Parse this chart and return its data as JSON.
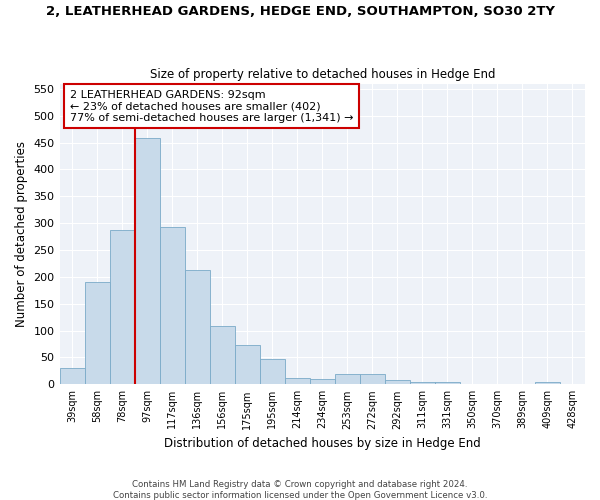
{
  "title": "2, LEATHERHEAD GARDENS, HEDGE END, SOUTHAMPTON, SO30 2TY",
  "subtitle": "Size of property relative to detached houses in Hedge End",
  "xlabel": "Distribution of detached houses by size in Hedge End",
  "ylabel": "Number of detached properties",
  "bar_color": "#c8daea",
  "bar_edge_color": "#7aaac8",
  "background_color": "#ffffff",
  "plot_bg_color": "#eef2f8",
  "grid_color": "#ffffff",
  "categories": [
    "39sqm",
    "58sqm",
    "78sqm",
    "97sqm",
    "117sqm",
    "136sqm",
    "156sqm",
    "175sqm",
    "195sqm",
    "214sqm",
    "234sqm",
    "253sqm",
    "272sqm",
    "292sqm",
    "311sqm",
    "331sqm",
    "350sqm",
    "370sqm",
    "389sqm",
    "409sqm",
    "428sqm"
  ],
  "values": [
    30,
    190,
    287,
    458,
    293,
    213,
    109,
    74,
    47,
    12,
    10,
    20,
    20,
    8,
    4,
    5,
    0,
    0,
    0,
    5,
    0
  ],
  "ylim": [
    0,
    560
  ],
  "yticks": [
    0,
    50,
    100,
    150,
    200,
    250,
    300,
    350,
    400,
    450,
    500,
    550
  ],
  "vline_color": "#cc0000",
  "vline_x_index": 2.5,
  "annotation_text": "2 LEATHERHEAD GARDENS: 92sqm\n← 23% of detached houses are smaller (402)\n77% of semi-detached houses are larger (1,341) →",
  "annotation_box_color": "#ffffff",
  "annotation_box_edge": "#cc0000",
  "footer1": "Contains HM Land Registry data © Crown copyright and database right 2024.",
  "footer2": "Contains public sector information licensed under the Open Government Licence v3.0."
}
